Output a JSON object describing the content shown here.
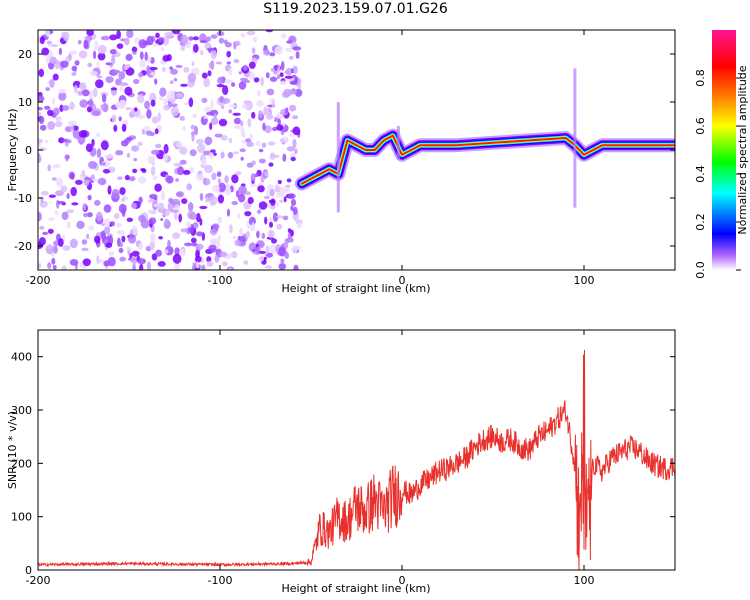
{
  "title": "S119.2023.159.07.01.G26",
  "chart_data": [
    {
      "type": "heatmap",
      "xlabel": "Height of straight line (km)",
      "ylabel": "Frequency (Hz)",
      "xlim": [
        -200,
        150
      ],
      "ylim": [
        -25,
        25
      ],
      "x_ticks": [
        -200,
        -100,
        0,
        100
      ],
      "y_ticks": [
        -20,
        -10,
        0,
        10,
        20
      ],
      "colorbar": {
        "label": "Normalized spectral amplitude",
        "range": [
          0,
          1
        ],
        "ticks": [
          0.0,
          0.2,
          0.4,
          0.6,
          0.8
        ],
        "colormap": [
          "#ffffff",
          "#8b00ff",
          "#0000ff",
          "#00ffff",
          "#00ff00",
          "#ffff00",
          "#ff8000",
          "#ff0000",
          "#ff1493"
        ]
      },
      "frequency_track": {
        "x": [
          -55,
          -50,
          -45,
          -40,
          -35,
          -30,
          -25,
          -20,
          -15,
          -10,
          -5,
          0,
          10,
          30,
          50,
          70,
          90,
          95,
          100,
          110,
          130,
          150
        ],
        "y": [
          -7,
          -6,
          -5,
          -4,
          -5,
          2,
          1,
          0,
          0,
          2,
          3,
          -1,
          1,
          1,
          1.5,
          2,
          2.5,
          1,
          -1,
          1,
          1,
          1
        ]
      },
      "noise_region": {
        "x_range": [
          -200,
          -58
        ],
        "y_range": [
          -25,
          25
        ]
      }
    },
    {
      "type": "line",
      "xlabel": "Height of straight line (km)",
      "ylabel": "SNR (10 * v/v)",
      "xlim": [
        -200,
        150
      ],
      "ylim": [
        0,
        450
      ],
      "x_ticks": [
        -200,
        -100,
        0,
        100
      ],
      "y_ticks": [
        0,
        100,
        200,
        300,
        400
      ],
      "color": "#e8302c",
      "series": [
        {
          "x": [
            -200,
            -150,
            -100,
            -60,
            -50,
            -45,
            -40,
            -35,
            -30,
            -25,
            -20,
            -15,
            -10,
            -5,
            0,
            5,
            10,
            15,
            20,
            25,
            30,
            35,
            40,
            45,
            50,
            55,
            60,
            65,
            70,
            75,
            80,
            85,
            90,
            95,
            98,
            100,
            102,
            105,
            110,
            115,
            120,
            125,
            130,
            135,
            140,
            145,
            150
          ],
          "y": [
            10,
            12,
            10,
            12,
            15,
            80,
            70,
            100,
            90,
            120,
            110,
            130,
            110,
            140,
            150,
            140,
            160,
            170,
            185,
            190,
            200,
            210,
            230,
            245,
            250,
            240,
            245,
            230,
            225,
            250,
            260,
            280,
            300,
            200,
            60,
            150,
            40,
            200,
            185,
            210,
            220,
            230,
            225,
            205,
            195,
            190,
            195
          ]
        }
      ]
    }
  ]
}
